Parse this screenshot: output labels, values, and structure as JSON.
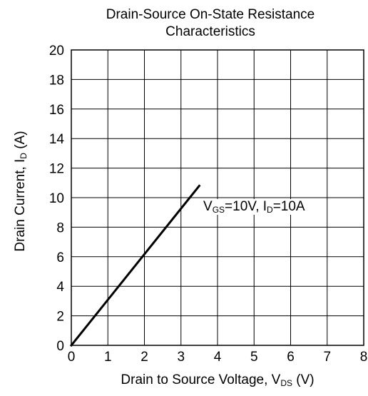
{
  "chart_data": {
    "type": "line",
    "title_lines": [
      "Drain-Source On-State Resistance",
      "Characteristics"
    ],
    "xlabel": {
      "main": "Drain to Source Voltage, V",
      "sub": "DS",
      "suffix": " (V)"
    },
    "ylabel": {
      "main": "Drain Current, I",
      "sub": "D",
      "suffix": " (A)"
    },
    "xlim": [
      0,
      8
    ],
    "ylim": [
      0,
      20
    ],
    "x_ticks": [
      "0",
      "1",
      "2",
      "3",
      "4",
      "5",
      "6",
      "7",
      "8"
    ],
    "y_ticks": [
      "0",
      "2",
      "4",
      "6",
      "8",
      "10",
      "12",
      "14",
      "16",
      "18",
      "20"
    ],
    "grid": true,
    "series": [
      {
        "x": [
          0,
          3.5
        ],
        "y": [
          0,
          10.8
        ]
      }
    ],
    "annotation": {
      "parts": [
        {
          "text": "V",
          "sub": "GS"
        },
        {
          "text": "=10V, I",
          "sub": "D"
        },
        {
          "text": "=10A",
          "sub": ""
        }
      ]
    }
  }
}
